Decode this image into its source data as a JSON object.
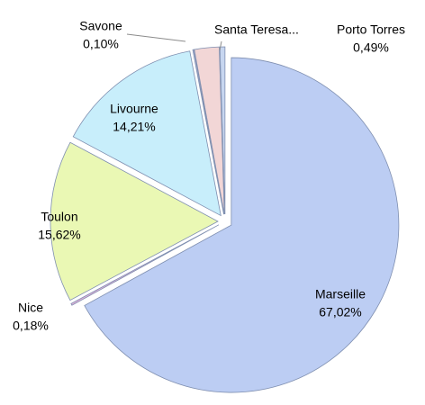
{
  "chart_data": {
    "type": "pie",
    "categories": [
      "Marseille",
      "Nice",
      "Toulon",
      "Livourne",
      "Savone",
      "Santa Teresa...",
      "Porto Torres"
    ],
    "values": [
      67.02,
      0.18,
      15.62,
      14.21,
      0.1,
      2.38,
      0.49
    ],
    "value_labels": [
      "67,02%",
      "0,18%",
      "15,62%",
      "14,21%",
      "0,10%",
      null,
      "0,49%"
    ],
    "colors": [
      "#bccdf3",
      "#e0b0d8",
      "#eaf8b4",
      "#c8eefb",
      "#c9c3e8",
      "#f2d6d6",
      "#c7d6f0"
    ]
  }
}
